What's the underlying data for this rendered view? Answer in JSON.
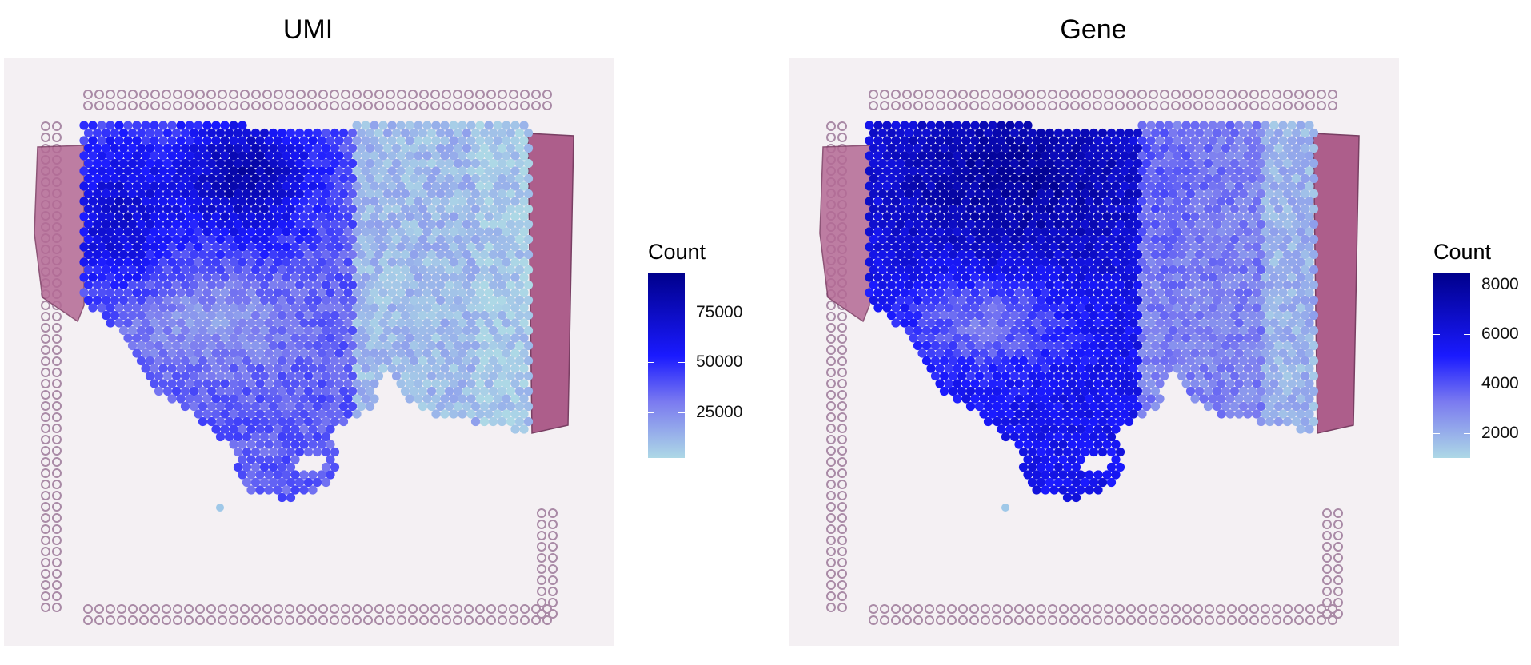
{
  "chart_data": [
    {
      "type": "heatmap",
      "title": "UMI",
      "legend_title": "Count",
      "legend_placement": "right",
      "color_scale": {
        "low": "#add8e6",
        "mid": "#1a1aff",
        "high": "#00008b"
      },
      "range": [
        2000,
        95000
      ],
      "ticks": [
        {
          "value": 25000,
          "label": "25000"
        },
        {
          "value": 50000,
          "label": "50000"
        },
        {
          "value": 75000,
          "label": "75000"
        }
      ],
      "grid": false
    },
    {
      "type": "heatmap",
      "title": "Gene",
      "legend_title": "Count",
      "legend_placement": "right",
      "color_scale": {
        "low": "#add8e6",
        "mid": "#1a1aff",
        "high": "#00008b"
      },
      "range": [
        1000,
        8500
      ],
      "ticks": [
        {
          "value": 2000,
          "label": "2000"
        },
        {
          "value": 4000,
          "label": "4000"
        },
        {
          "value": 6000,
          "label": "6000"
        },
        {
          "value": 8000,
          "label": "8000"
        }
      ],
      "grid": false
    }
  ]
}
